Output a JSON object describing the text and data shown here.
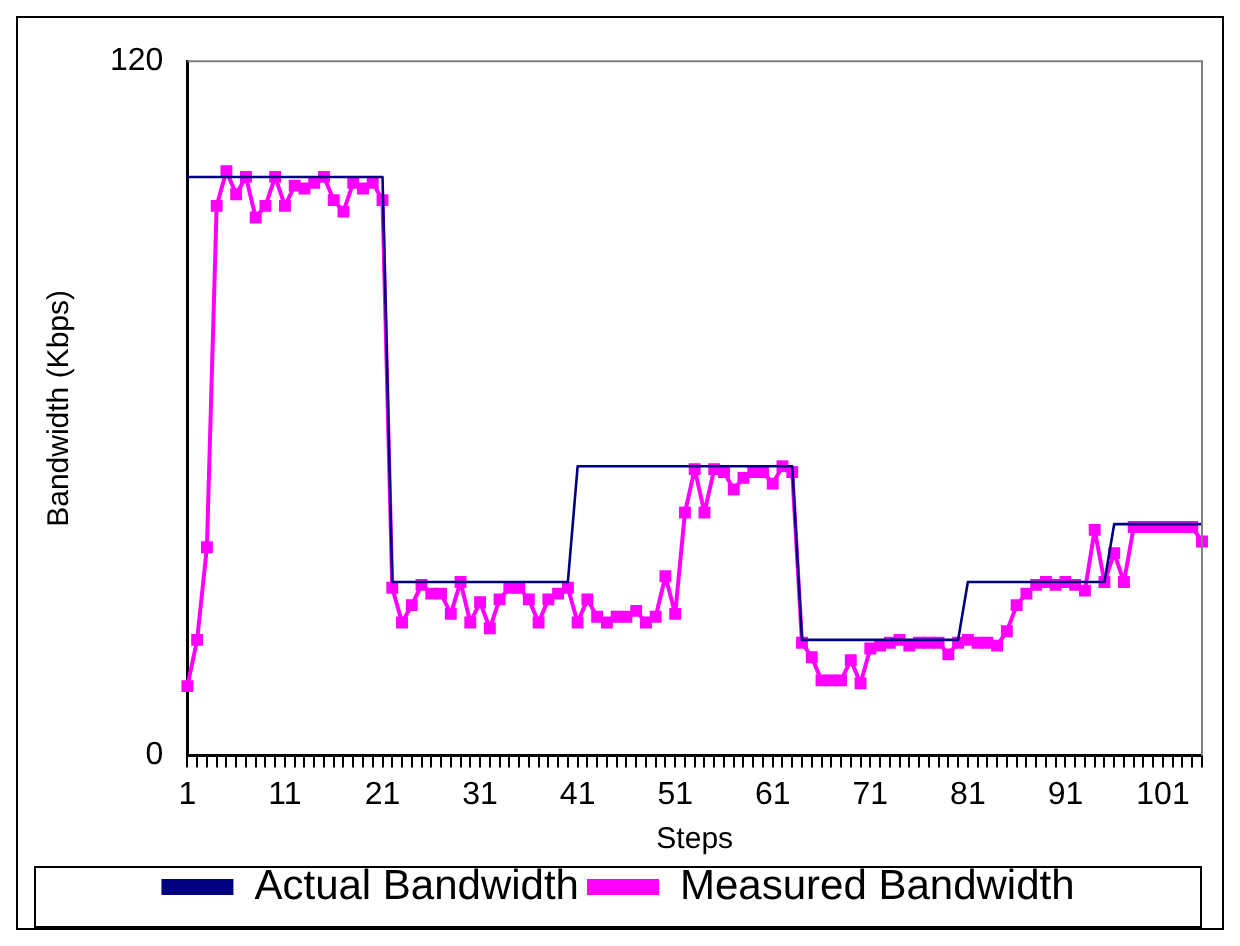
{
  "chart_data": {
    "type": "line",
    "xlabel": "Steps",
    "ylabel": "Bandwidth (Kbps)",
    "categories": [
      "1",
      null,
      null,
      null,
      null,
      null,
      null,
      null,
      null,
      null,
      "11",
      null,
      null,
      null,
      null,
      null,
      null,
      null,
      null,
      null,
      "21",
      null,
      null,
      null,
      null,
      null,
      null,
      null,
      null,
      null,
      "31",
      null,
      null,
      null,
      null,
      null,
      null,
      null,
      null,
      null,
      "41",
      null,
      null,
      null,
      null,
      null,
      null,
      null,
      null,
      null,
      "51",
      null,
      null,
      null,
      null,
      null,
      null,
      null,
      null,
      null,
      "61",
      null,
      null,
      null,
      null,
      null,
      null,
      null,
      null,
      null,
      "71",
      null,
      null,
      null,
      null,
      null,
      null,
      null,
      null,
      null,
      "81",
      null,
      null,
      null,
      null,
      null,
      null,
      null,
      null,
      null,
      "91",
      null,
      null,
      null,
      null,
      null,
      null,
      null,
      null,
      null,
      "101",
      null,
      null,
      null,
      null
    ],
    "series": [
      {
        "name": "Actual Bandwidth",
        "color": "#000080",
        "marker": "none",
        "values": [
          100,
          100,
          100,
          100,
          100,
          100,
          100,
          100,
          100,
          100,
          100,
          100,
          100,
          100,
          100,
          100,
          100,
          100,
          100,
          100,
          100,
          30,
          30,
          30,
          30,
          30,
          30,
          30,
          30,
          30,
          30,
          30,
          30,
          30,
          30,
          30,
          30,
          30,
          30,
          30,
          50,
          50,
          50,
          50,
          50,
          50,
          50,
          50,
          50,
          50,
          50,
          50,
          50,
          50,
          50,
          50,
          50,
          50,
          50,
          50,
          50,
          50,
          50,
          20,
          20,
          20,
          20,
          20,
          20,
          20,
          20,
          20,
          20,
          20,
          20,
          20,
          20,
          20,
          20,
          20,
          30,
          30,
          30,
          30,
          30,
          30,
          30,
          30,
          30,
          30,
          30,
          30,
          30,
          30,
          30,
          40,
          40,
          40,
          40,
          40,
          40,
          40,
          40,
          40,
          40
        ]
      },
      {
        "name": "Measured Bandwidth",
        "color": "#ff00ff",
        "marker": "square",
        "values": [
          12,
          20,
          36,
          95,
          101,
          97,
          100,
          93,
          95,
          100,
          95,
          98.5,
          98,
          99,
          100,
          96,
          94,
          99,
          98,
          99,
          96,
          29,
          23,
          26,
          29.5,
          28,
          28,
          24.5,
          30,
          23,
          26.5,
          22,
          27,
          29,
          29,
          27,
          23,
          27,
          28,
          29,
          23,
          27,
          24,
          23,
          24,
          24,
          25,
          23,
          24,
          31,
          24.5,
          42,
          49.5,
          42,
          49.5,
          49,
          46,
          48,
          49,
          49,
          47,
          50,
          49,
          19.5,
          17,
          13,
          13,
          13,
          16.5,
          12.5,
          18.5,
          19,
          19.5,
          20,
          19,
          19.5,
          19.5,
          19.5,
          17.5,
          19.5,
          20,
          19.5,
          19.5,
          19,
          21.5,
          26,
          28,
          29.5,
          30,
          29.5,
          30,
          29.5,
          28.5,
          39,
          30,
          35,
          30,
          39.5,
          39.5,
          39.5,
          39.5,
          39.5,
          39.5,
          39.5,
          37
        ]
      }
    ],
    "ylim": [
      0,
      120
    ],
    "yticks": [
      0,
      120
    ],
    "grid": false,
    "legend": "bottom"
  }
}
